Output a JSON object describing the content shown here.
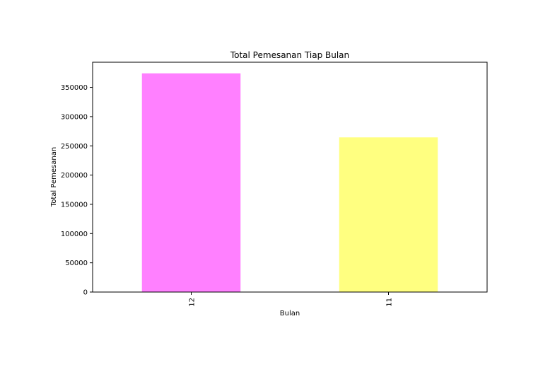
{
  "chart_data": {
    "type": "bar",
    "title": "Total Pemesanan Tiap Bulan",
    "xlabel": "Bulan",
    "ylabel": "Total Pemesanan",
    "categories": [
      "12",
      "11"
    ],
    "values": [
      374000,
      264500
    ],
    "colors": [
      "#ff80ff",
      "#ffff80"
    ],
    "ylim": [
      0,
      393000
    ],
    "yticks": [
      0,
      50000,
      100000,
      150000,
      200000,
      250000,
      300000,
      350000
    ],
    "ytick_labels": [
      "0",
      "50000",
      "100000",
      "150000",
      "200000",
      "250000",
      "300000",
      "350000"
    ],
    "xtick_rotation": "vertical",
    "grid": false,
    "legend": "none"
  }
}
